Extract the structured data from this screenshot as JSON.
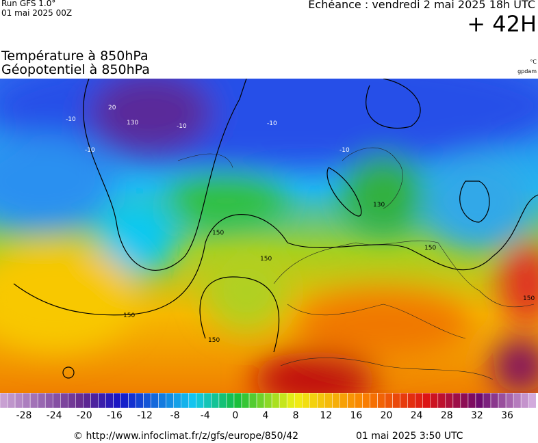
{
  "header": {
    "run": "Run GFS 1.0°",
    "run_date": "01 mai 2025 00Z",
    "valid": "Echéance : vendredi 2 mai 2025 18h UTC",
    "lead": "+ 42H",
    "title_line1": "Température à 850hPa",
    "title_line2": "Géopotentiel à 850hPa",
    "unit_temp": "°C",
    "unit_geo": "gpdam"
  },
  "map": {
    "contour_labels": [
      "20",
      "130",
      "-10",
      "-10",
      "-10",
      "-10",
      "-10",
      "150",
      "150",
      "150",
      "150",
      "130",
      "150",
      "150"
    ]
  },
  "colorbar": {
    "ticks": [
      -28,
      -24,
      -20,
      -16,
      -12,
      -8,
      -4,
      0,
      4,
      8,
      12,
      16,
      20,
      24,
      28,
      32,
      36
    ]
  },
  "footer": {
    "source": "© http://www.infoclimat.fr/z/gfs/europe/850/42",
    "generated": "01 mai 2025  3:50 UTC"
  }
}
